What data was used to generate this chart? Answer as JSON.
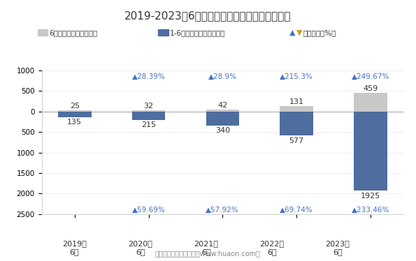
{
  "title": "2019-2023年6月郑州商品交易所棉花期权成交量",
  "years": [
    "2019年\n6月",
    "2020年\n6月",
    "2021年\n6月",
    "2022年\n6月",
    "2023年\n6月"
  ],
  "june_values": [
    25,
    32,
    42,
    131,
    459
  ],
  "cumulative_values": [
    135,
    215,
    340,
    577,
    1925
  ],
  "top_growth": [
    null,
    28.39,
    28.9,
    215.3,
    249.67
  ],
  "bottom_growth": [
    null,
    59.69,
    57.92,
    69.74,
    233.46
  ],
  "june_color": "#c8c8c8",
  "cumul_color": "#4f6d9f",
  "triangle_color_top": "#4472c4",
  "triangle_color_bottom": "#4472c4",
  "bg_color": "#ffffff",
  "legend_june": "6月期权成交量（万手）",
  "legend_cumul": "1-6月期权成交量（万手）",
  "legend_growth": "同比增长（%）",
  "footer": "制图：华经产业研究院（www.huaon.com）"
}
